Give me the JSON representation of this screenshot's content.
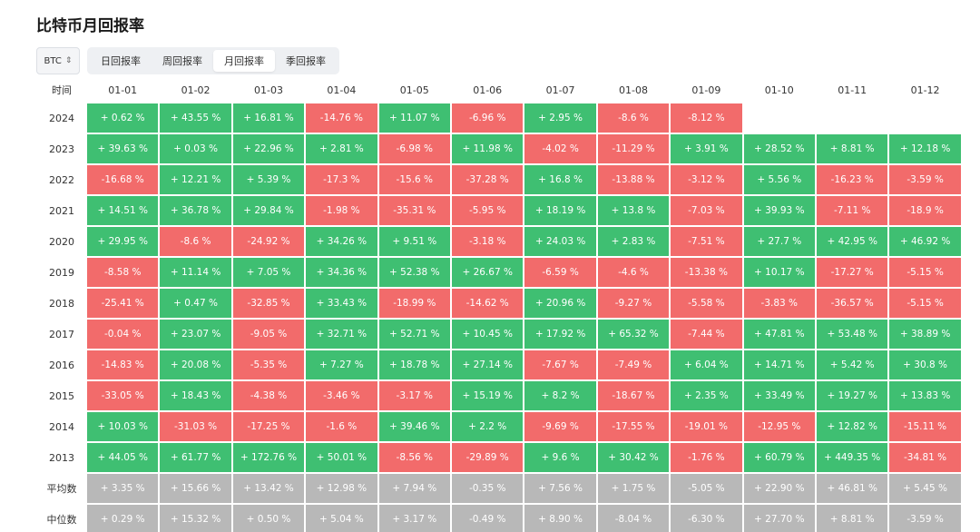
{
  "title": "比特币月回报率",
  "selector": {
    "value": "BTC",
    "icon": "up-down-caret-icon"
  },
  "tabs": [
    {
      "label": "日回报率",
      "active": false
    },
    {
      "label": "周回报率",
      "active": false
    },
    {
      "label": "月回报率",
      "active": true
    },
    {
      "label": "季回报率",
      "active": false
    }
  ],
  "colors": {
    "positive": "#3fbf72",
    "negative": "#f26b6b",
    "summary": "#b8b8b8"
  },
  "table": {
    "corner_label": "时间",
    "columns": [
      "01-01",
      "01-02",
      "01-03",
      "01-04",
      "01-05",
      "01-06",
      "01-07",
      "01-08",
      "01-09",
      "01-10",
      "01-11",
      "01-12"
    ],
    "rows": [
      {
        "label": "2024",
        "cells": [
          "+ 0.62 %",
          "+ 43.55 %",
          "+ 16.81 %",
          "-14.76 %",
          "+ 11.07 %",
          "-6.96 %",
          "+ 2.95 %",
          "-8.6 %",
          "-8.12 %",
          "",
          "",
          ""
        ]
      },
      {
        "label": "2023",
        "cells": [
          "+ 39.63 %",
          "+ 0.03 %",
          "+ 22.96 %",
          "+ 2.81 %",
          "-6.98 %",
          "+ 11.98 %",
          "-4.02 %",
          "-11.29 %",
          "+ 3.91 %",
          "+ 28.52 %",
          "+ 8.81 %",
          "+ 12.18 %"
        ]
      },
      {
        "label": "2022",
        "cells": [
          "-16.68 %",
          "+ 12.21 %",
          "+ 5.39 %",
          "-17.3 %",
          "-15.6 %",
          "-37.28 %",
          "+ 16.8 %",
          "-13.88 %",
          "-3.12 %",
          "+ 5.56 %",
          "-16.23 %",
          "-3.59 %"
        ]
      },
      {
        "label": "2021",
        "cells": [
          "+ 14.51 %",
          "+ 36.78 %",
          "+ 29.84 %",
          "-1.98 %",
          "-35.31 %",
          "-5.95 %",
          "+ 18.19 %",
          "+ 13.8 %",
          "-7.03 %",
          "+ 39.93 %",
          "-7.11 %",
          "-18.9 %"
        ]
      },
      {
        "label": "2020",
        "cells": [
          "+ 29.95 %",
          "-8.6 %",
          "-24.92 %",
          "+ 34.26 %",
          "+ 9.51 %",
          "-3.18 %",
          "+ 24.03 %",
          "+ 2.83 %",
          "-7.51 %",
          "+ 27.7 %",
          "+ 42.95 %",
          "+ 46.92 %"
        ]
      },
      {
        "label": "2019",
        "cells": [
          "-8.58 %",
          "+ 11.14 %",
          "+ 7.05 %",
          "+ 34.36 %",
          "+ 52.38 %",
          "+ 26.67 %",
          "-6.59 %",
          "-4.6 %",
          "-13.38 %",
          "+ 10.17 %",
          "-17.27 %",
          "-5.15 %"
        ]
      },
      {
        "label": "2018",
        "cells": [
          "-25.41 %",
          "+ 0.47 %",
          "-32.85 %",
          "+ 33.43 %",
          "-18.99 %",
          "-14.62 %",
          "+ 20.96 %",
          "-9.27 %",
          "-5.58 %",
          "-3.83 %",
          "-36.57 %",
          "-5.15 %"
        ]
      },
      {
        "label": "2017",
        "cells": [
          "-0.04 %",
          "+ 23.07 %",
          "-9.05 %",
          "+ 32.71 %",
          "+ 52.71 %",
          "+ 10.45 %",
          "+ 17.92 %",
          "+ 65.32 %",
          "-7.44 %",
          "+ 47.81 %",
          "+ 53.48 %",
          "+ 38.89 %"
        ]
      },
      {
        "label": "2016",
        "cells": [
          "-14.83 %",
          "+ 20.08 %",
          "-5.35 %",
          "+ 7.27 %",
          "+ 18.78 %",
          "+ 27.14 %",
          "-7.67 %",
          "-7.49 %",
          "+ 6.04 %",
          "+ 14.71 %",
          "+ 5.42 %",
          "+ 30.8 %"
        ]
      },
      {
        "label": "2015",
        "cells": [
          "-33.05 %",
          "+ 18.43 %",
          "-4.38 %",
          "-3.46 %",
          "-3.17 %",
          "+ 15.19 %",
          "+ 8.2 %",
          "-18.67 %",
          "+ 2.35 %",
          "+ 33.49 %",
          "+ 19.27 %",
          "+ 13.83 %"
        ]
      },
      {
        "label": "2014",
        "cells": [
          "+ 10.03 %",
          "-31.03 %",
          "-17.25 %",
          "-1.6 %",
          "+ 39.46 %",
          "+ 2.2 %",
          "-9.69 %",
          "-17.55 %",
          "-19.01 %",
          "-12.95 %",
          "+ 12.82 %",
          "-15.11 %"
        ]
      },
      {
        "label": "2013",
        "cells": [
          "+ 44.05 %",
          "+ 61.77 %",
          "+ 172.76 %",
          "+ 50.01 %",
          "-8.56 %",
          "-29.89 %",
          "+ 9.6 %",
          "+ 30.42 %",
          "-1.76 %",
          "+ 60.79 %",
          "+ 449.35 %",
          "-34.81 %"
        ]
      }
    ],
    "summary_rows": [
      {
        "label": "平均数",
        "cells": [
          "+ 3.35 %",
          "+ 15.66 %",
          "+ 13.42 %",
          "+ 12.98 %",
          "+ 7.94 %",
          "-0.35 %",
          "+ 7.56 %",
          "+ 1.75 %",
          "-5.05 %",
          "+ 22.90 %",
          "+ 46.81 %",
          "+ 5.45 %"
        ]
      },
      {
        "label": "中位数",
        "cells": [
          "+ 0.29 %",
          "+ 15.32 %",
          "+ 0.50 %",
          "+ 5.04 %",
          "+ 3.17 %",
          "-0.49 %",
          "+ 8.90 %",
          "-8.04 %",
          "-6.30 %",
          "+ 27.70 %",
          "+ 8.81 %",
          "-3.59 %"
        ]
      }
    ]
  }
}
